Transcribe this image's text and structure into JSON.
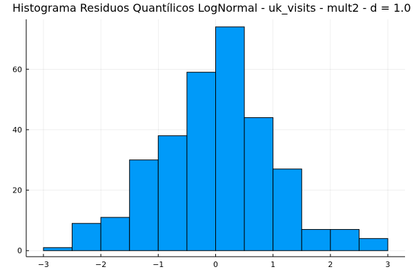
{
  "chart_data": {
    "type": "bar",
    "title": "Histograma Residuos Quantílicos LogNormal - uk_visits - mult2 - d = 1.0",
    "xlabel": "",
    "ylabel": "",
    "bar_color": "#009af9",
    "grid": true,
    "legend": "none",
    "xlim": [
      -3.3,
      3.3
    ],
    "ylim": [
      -2,
      76.5
    ],
    "x_ticks": [
      {
        "value": -3,
        "label": "−3"
      },
      {
        "value": -2,
        "label": "−2"
      },
      {
        "value": -1,
        "label": "−1"
      },
      {
        "value": 0,
        "label": "0"
      },
      {
        "value": 1,
        "label": "1"
      },
      {
        "value": 2,
        "label": "2"
      },
      {
        "value": 3,
        "label": "3"
      }
    ],
    "y_ticks": [
      {
        "value": 0,
        "label": "0"
      },
      {
        "value": 20,
        "label": "20"
      },
      {
        "value": 40,
        "label": "40"
      },
      {
        "value": 60,
        "label": "60"
      }
    ],
    "bins": [
      {
        "x0": -3.0,
        "x1": -2.5,
        "count": 1
      },
      {
        "x0": -2.5,
        "x1": -2.0,
        "count": 9
      },
      {
        "x0": -2.0,
        "x1": -1.5,
        "count": 11
      },
      {
        "x0": -1.5,
        "x1": -1.0,
        "count": 30
      },
      {
        "x0": -1.0,
        "x1": -0.5,
        "count": 38
      },
      {
        "x0": -0.5,
        "x1": 0.0,
        "count": 59
      },
      {
        "x0": 0.0,
        "x1": 0.5,
        "count": 74
      },
      {
        "x0": 0.5,
        "x1": 1.0,
        "count": 44
      },
      {
        "x0": 1.0,
        "x1": 1.5,
        "count": 27
      },
      {
        "x0": 1.5,
        "x1": 2.0,
        "count": 7
      },
      {
        "x0": 2.0,
        "x1": 2.5,
        "count": 7
      },
      {
        "x0": 2.5,
        "x1": 3.0,
        "count": 4
      }
    ]
  }
}
